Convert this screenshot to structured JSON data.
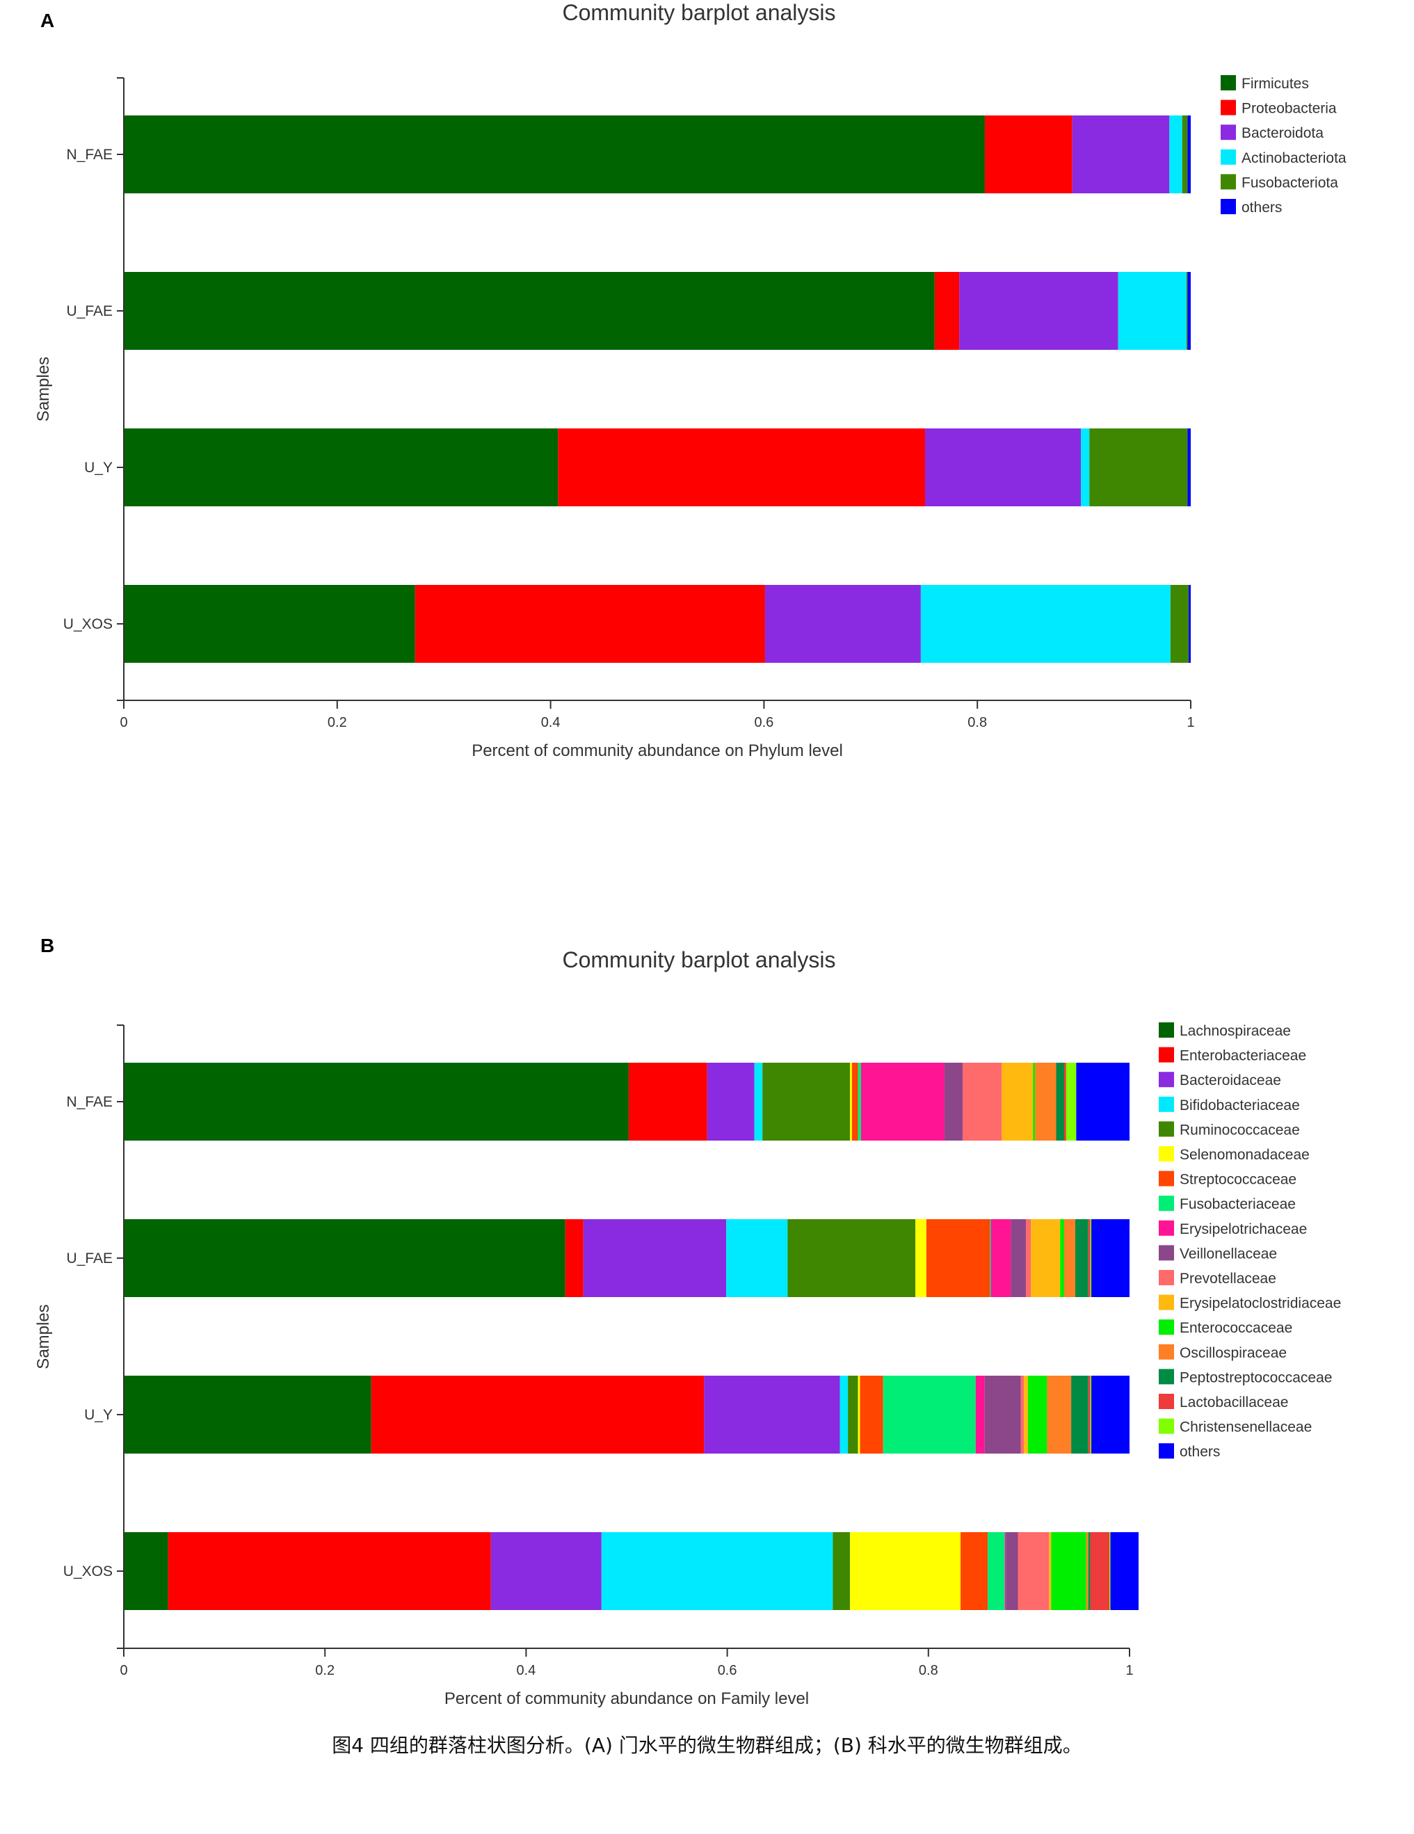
{
  "caption": "图4 四组的群落柱状图分析。(A) 门水平的微生物群组成；(B) 科水平的微生物群组成。",
  "colors": {
    "axis": "#333333",
    "dark_green": "#006400",
    "red": "#ff0000",
    "purple": "#8a2be2",
    "cyan": "#00eaff",
    "olive_green": "#3f8700",
    "blue": "#0000ff"
  },
  "chart_data": [
    {
      "panel": "A",
      "type": "bar",
      "orientation": "horizontal",
      "stacked": true,
      "title": "Community barplot analysis",
      "xlabel": "Percent of community abundance on Phylum level",
      "ylabel": "Samples",
      "xlim": [
        0,
        1
      ],
      "xticks": [
        "0",
        "0.2",
        "0.4",
        "0.6",
        "0.8",
        "1"
      ],
      "legend_position": "top-right",
      "grid": false,
      "categories": [
        "N_FAE",
        "U_FAE",
        "U_Y",
        "U_XOS"
      ],
      "series": [
        {
          "name": "Firmicutes",
          "color": "#006400",
          "values": [
            0.807,
            0.76,
            0.407,
            0.273
          ]
        },
        {
          "name": "Proteobacteria",
          "color": "#ff0000",
          "values": [
            0.082,
            0.023,
            0.344,
            0.328
          ]
        },
        {
          "name": "Bacteroidota",
          "color": "#8a2be2",
          "values": [
            0.091,
            0.149,
            0.146,
            0.146
          ]
        },
        {
          "name": "Actinobacteriota",
          "color": "#00eaff",
          "values": [
            0.012,
            0.064,
            0.008,
            0.234
          ]
        },
        {
          "name": "Fusobacteriota",
          "color": "#3f8700",
          "values": [
            0.005,
            0.001,
            0.092,
            0.017
          ]
        },
        {
          "name": "others",
          "color": "#0000ff",
          "values": [
            0.003,
            0.003,
            0.003,
            0.002
          ]
        }
      ]
    },
    {
      "panel": "B",
      "type": "bar",
      "orientation": "horizontal",
      "stacked": true,
      "title": "Community barplot analysis",
      "xlabel": "Percent of community abundance on Family level",
      "ylabel": "Samples",
      "xlim": [
        0,
        1
      ],
      "xticks": [
        "0",
        "0.2",
        "0.4",
        "0.6",
        "0.8",
        "1"
      ],
      "legend_position": "top-right",
      "grid": false,
      "categories": [
        "N_FAE",
        "U_FAE",
        "U_Y",
        "U_XOS"
      ],
      "series": [
        {
          "name": "Lachnospiraceae",
          "color": "#006400",
          "values": [
            0.502,
            0.439,
            0.246,
            0.044
          ]
        },
        {
          "name": "Enterobacteriaceae",
          "color": "#ff0000",
          "values": [
            0.078,
            0.018,
            0.331,
            0.321
          ]
        },
        {
          "name": "Bacteroidaceae",
          "color": "#8a2be2",
          "values": [
            0.047,
            0.142,
            0.135,
            0.11
          ]
        },
        {
          "name": "Bifidobacteriaceae",
          "color": "#00eaff",
          "values": [
            0.008,
            0.061,
            0.008,
            0.23
          ]
        },
        {
          "name": "Ruminococcaceae",
          "color": "#3f8700",
          "values": [
            0.087,
            0.127,
            0.01,
            0.017
          ]
        },
        {
          "name": "Selenomonadaceae",
          "color": "#ffff00",
          "values": [
            0.002,
            0.011,
            0.002,
            0.11
          ]
        },
        {
          "name": "Streptococcaceae",
          "color": "#ff4500",
          "values": [
            0.006,
            0.063,
            0.023,
            0.027
          ]
        },
        {
          "name": "Fusobacteriaceae",
          "color": "#00ee76",
          "values": [
            0.003,
            0.001,
            0.092,
            0.017
          ]
        },
        {
          "name": "Erysipelotrichaceae",
          "color": "#ff1493",
          "values": [
            0.083,
            0.02,
            0.009,
            0.001
          ]
        },
        {
          "name": "Veillonellaceae",
          "color": "#8b4789",
          "values": [
            0.018,
            0.015,
            0.036,
            0.012
          ]
        },
        {
          "name": "Prevotellaceae",
          "color": "#ff6a6a",
          "values": [
            0.039,
            0.005,
            0.003,
            0.031
          ]
        },
        {
          "name": "Erysipelatoclostridiaceae",
          "color": "#ffb90f",
          "values": [
            0.031,
            0.029,
            0.004,
            0.002
          ]
        },
        {
          "name": "Enterococcaceae",
          "color": "#00ee00",
          "values": [
            0.002,
            0.004,
            0.019,
            0.035
          ]
        },
        {
          "name": "Oscillospiraceae",
          "color": "#ff7f24",
          "values": [
            0.021,
            0.011,
            0.024,
            0.002
          ]
        },
        {
          "name": "Peptostreptococcaceae",
          "color": "#008b45",
          "values": [
            0.008,
            0.013,
            0.017,
            0.002
          ]
        },
        {
          "name": "Lactobacillaceae",
          "color": "#ee3b3b",
          "values": [
            0.002,
            0.002,
            0.002,
            0.019
          ]
        },
        {
          "name": "Christensenellaceae",
          "color": "#7fff00",
          "values": [
            0.01,
            0.001,
            0.001,
            0.001
          ]
        },
        {
          "name": "others",
          "color": "#0000ff",
          "values": [
            0.053,
            0.038,
            0.038,
            0.028
          ]
        }
      ]
    }
  ]
}
